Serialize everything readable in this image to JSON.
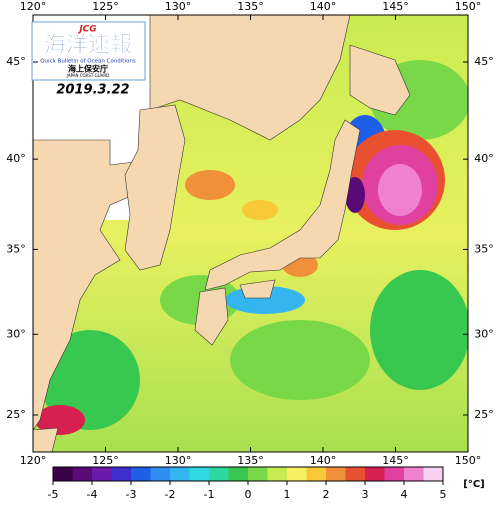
{
  "header": {
    "agency_mark": "JCG",
    "title": "海洋速報",
    "subtitle": "Quick Bulletin of Ocean Conditions",
    "agency": "海上保安庁",
    "agency_en": "JAPAN COAST GUARD",
    "date": "2019.3.22"
  },
  "map": {
    "lon_range": [
      120,
      150
    ],
    "lon_ticks": [
      {
        "value": 120,
        "label": "120°"
      },
      {
        "value": 125,
        "label": "125°"
      },
      {
        "value": 130,
        "label": "130°"
      },
      {
        "value": 135,
        "label": "135°"
      },
      {
        "value": 140,
        "label": "140°"
      },
      {
        "value": 145,
        "label": "145°"
      },
      {
        "value": 150,
        "label": "150°"
      }
    ],
    "lat_ticks": [
      {
        "value": 25,
        "label": "25°"
      },
      {
        "value": 30,
        "label": "30°"
      },
      {
        "value": 35,
        "label": "35°"
      },
      {
        "value": 40,
        "label": "40°"
      },
      {
        "value": 45,
        "label": "45°"
      }
    ]
  },
  "colorbar": {
    "unit": "[°C]",
    "ticks": [
      -5,
      -4,
      -3,
      -2,
      -1,
      0,
      1,
      2,
      3,
      4,
      5
    ],
    "colors": [
      "#3a0048",
      "#5a0a78",
      "#6a1aa8",
      "#3b2fd0",
      "#1f5fe8",
      "#2f8ff0",
      "#35b5f0",
      "#30d8e0",
      "#2cd8a0",
      "#38c850",
      "#78d848",
      "#c8ec50",
      "#f8f060",
      "#f8c838",
      "#f09038",
      "#e85030",
      "#d82050",
      "#e040a0",
      "#f080d0",
      "#f8d0f0"
    ]
  }
}
